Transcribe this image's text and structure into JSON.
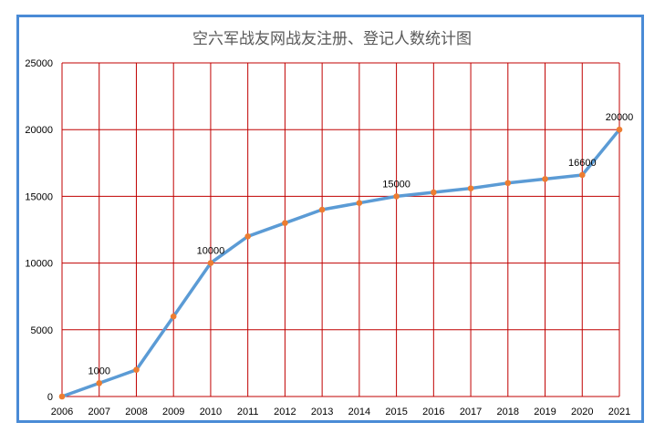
{
  "chart_data": {
    "type": "line",
    "title": "空六军战友网战友注册、登记人数统计图",
    "xlabel": "",
    "ylabel": "",
    "x": [
      "2006",
      "2007",
      "2008",
      "2009",
      "2010",
      "2011",
      "2012",
      "2013",
      "2014",
      "2015",
      "2016",
      "2017",
      "2018",
      "2019",
      "2020",
      "2021"
    ],
    "y": [
      0,
      1000,
      2000,
      6000,
      10000,
      12000,
      13000,
      14000,
      14500,
      15000,
      15300,
      15600,
      16000,
      16300,
      16600,
      20000
    ],
    "ylim": [
      0,
      25000
    ],
    "yticks": [
      "0",
      "5000",
      "10000",
      "15000",
      "20000",
      "25000"
    ],
    "data_labels": [
      {
        "index": 1,
        "text": "1000"
      },
      {
        "index": 4,
        "text": "10000"
      },
      {
        "index": 9,
        "text": "15000"
      },
      {
        "index": 14,
        "text": "16600"
      },
      {
        "index": 15,
        "text": "20000"
      }
    ],
    "grid": true,
    "legend": "none",
    "colors": {
      "line": "#5b9bd5",
      "marker": "#ed7d31",
      "grid": "#c00000",
      "frame": "#4a8bd6",
      "title": "#595959"
    }
  }
}
